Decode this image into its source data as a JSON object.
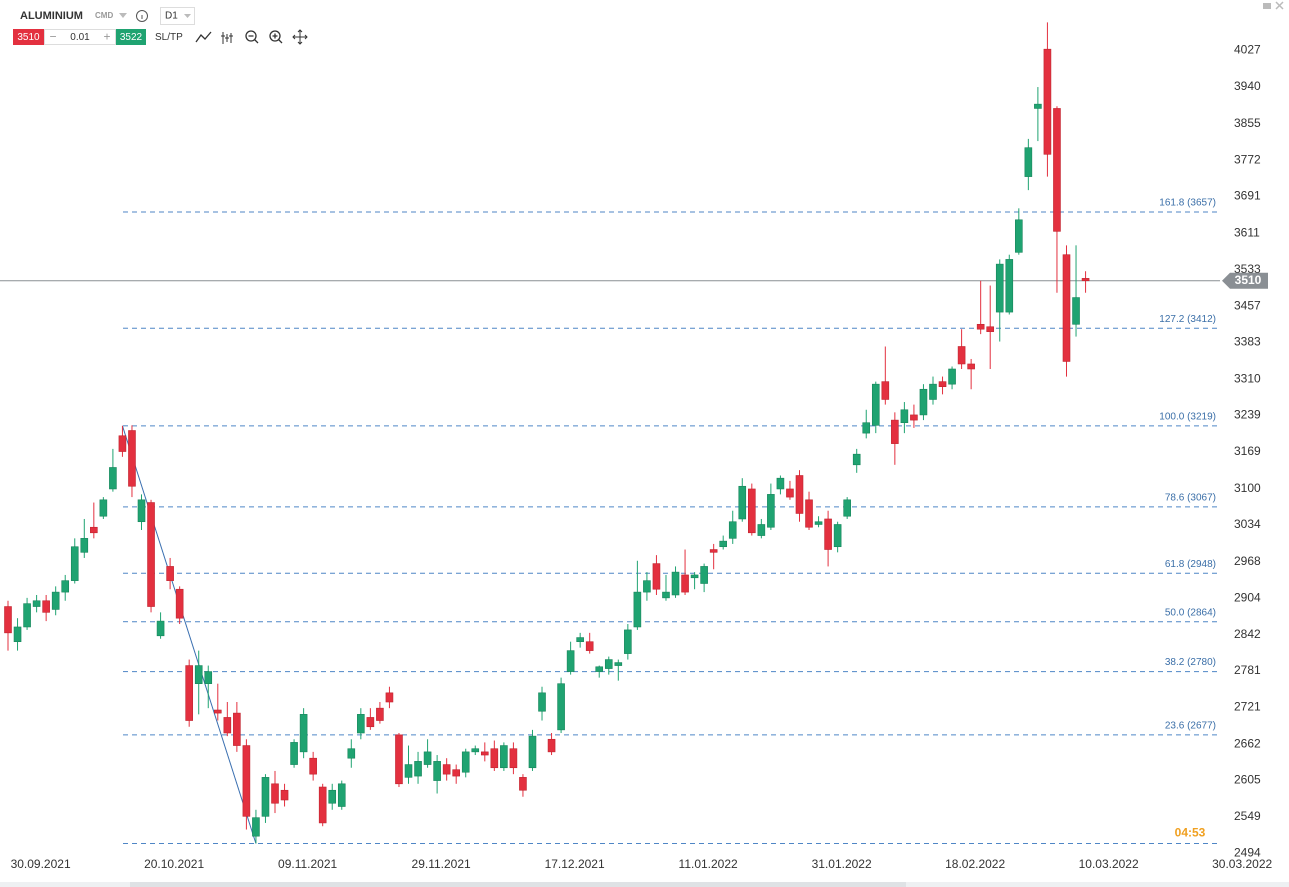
{
  "toolbar": {
    "symbol": "ALUMINIUM",
    "instrument_type": "CMD",
    "timeframe": "D1",
    "sell": 3510,
    "volume": 0.01,
    "buy": 3522,
    "sltp": "SL/TP"
  },
  "chart_data": {
    "type": "candlestick",
    "categories": [
      null,
      null,
      null,
      "30.09.2021",
      null,
      null,
      null,
      null,
      null,
      null,
      null,
      null,
      null,
      null,
      null,
      null,
      null,
      "20.10.2021",
      null,
      null,
      null,
      null,
      null,
      null,
      null,
      null,
      null,
      null,
      null,
      null,
      null,
      "09.11.2021",
      null,
      null,
      null,
      null,
      null,
      null,
      null,
      null,
      null,
      null,
      null,
      null,
      null,
      "29.11.2021",
      null,
      null,
      null,
      null,
      null,
      null,
      null,
      null,
      null,
      null,
      null,
      null,
      null,
      "17.12.2021",
      null,
      null,
      null,
      null,
      null,
      null,
      null,
      null,
      null,
      null,
      null,
      null,
      null,
      "11.01.2022",
      null,
      null,
      null,
      null,
      null,
      null,
      null,
      null,
      null,
      null,
      null,
      null,
      null,
      "31.01.2022",
      null,
      null,
      null,
      null,
      null,
      null,
      null,
      null,
      null,
      null,
      null,
      null,
      null,
      "18.02.2022",
      null,
      null,
      null,
      null,
      null,
      null,
      null,
      null,
      null,
      null,
      null,
      null,
      null,
      "10.03.2022",
      null,
      null,
      null,
      null,
      null,
      null,
      null,
      null,
      null,
      null,
      null,
      null,
      null,
      "30.03.2022"
    ],
    "open": [
      2890,
      2830,
      2855,
      2890,
      2900,
      2885,
      2915,
      2935,
      2985,
      3030,
      3050,
      3100,
      3200,
      3210,
      3040,
      3075,
      2840,
      2960,
      2920,
      2790,
      2760,
      2760,
      2717,
      2705,
      2712,
      2660,
      2520,
      2550,
      2600,
      2590,
      2630,
      2650,
      2640,
      2595,
      2570,
      2565,
      2640,
      2680,
      2705,
      2720,
      2745,
      2677,
      2610,
      2612,
      2630,
      2605,
      2630,
      2622,
      2618,
      2650,
      2650,
      2655,
      2625,
      2655,
      2610,
      2625,
      2715,
      2670,
      2685,
      2780,
      2830,
      2830,
      2780,
      2785,
      2790,
      2810,
      2855,
      2915,
      2965,
      2905,
      2910,
      2945,
      2940,
      2930,
      2990,
      2995,
      3010,
      3045,
      3100,
      3015,
      3030,
      3100,
      3100,
      3125,
      3080,
      3035,
      3045,
      2995,
      3050,
      3145,
      3205,
      3220,
      3305,
      3230,
      3225,
      3240,
      3240,
      3270,
      3305,
      3300,
      3375,
      3340,
      3420,
      3415,
      3445,
      3445,
      3570,
      3735,
      3890,
      4030,
      3890,
      3565,
      3420,
      3515,
      null,
      null,
      null,
      null,
      null,
      null,
      null,
      null,
      null,
      null,
      null,
      null,
      null,
      null,
      null,
      null
    ],
    "high": [
      2900,
      2870,
      2905,
      2910,
      2910,
      2925,
      2945,
      3010,
      3045,
      3075,
      3085,
      3175,
      3219,
      3220,
      3090,
      3080,
      2880,
      2975,
      2925,
      2800,
      2815,
      2790,
      2760,
      2730,
      2730,
      2670,
      2560,
      2615,
      2620,
      2600,
      2670,
      2720,
      2650,
      2600,
      2600,
      2605,
      2670,
      2720,
      2720,
      2730,
      2755,
      2680,
      2660,
      2650,
      2670,
      2645,
      2640,
      2630,
      2655,
      2660,
      2665,
      2668,
      2665,
      2665,
      2615,
      2685,
      2755,
      2680,
      2770,
      2830,
      2845,
      2845,
      2790,
      2805,
      2800,
      2860,
      2970,
      2950,
      2980,
      2945,
      2960,
      2990,
      2950,
      2965,
      3000,
      3015,
      3060,
      3120,
      3110,
      3045,
      3110,
      3125,
      3115,
      3135,
      3095,
      3050,
      3060,
      3040,
      3085,
      3175,
      3250,
      3305,
      3375,
      3245,
      3265,
      3260,
      3300,
      3315,
      3315,
      3335,
      3410,
      3350,
      3510,
      3500,
      3555,
      3565,
      3665,
      3820,
      3940,
      4095,
      3895,
      3585,
      3585,
      3530,
      null,
      null,
      null,
      null,
      null,
      null,
      null,
      null,
      null,
      null,
      null,
      null,
      null,
      null,
      null,
      null
    ],
    "low": [
      2815,
      2815,
      2850,
      2880,
      2865,
      2875,
      2900,
      2930,
      2975,
      3010,
      3045,
      3095,
      3160,
      3085,
      3025,
      2880,
      2835,
      2920,
      2860,
      2690,
      2710,
      2720,
      2700,
      2675,
      2650,
      2530,
      2509,
      2540,
      2555,
      2565,
      2625,
      2640,
      2605,
      2535,
      2560,
      2560,
      2625,
      2670,
      2685,
      2695,
      2720,
      2595,
      2600,
      2600,
      2625,
      2585,
      2605,
      2600,
      2610,
      2645,
      2635,
      2620,
      2620,
      2615,
      2580,
      2620,
      2700,
      2645,
      2680,
      2775,
      2820,
      2810,
      2770,
      2775,
      2765,
      2800,
      2850,
      2900,
      2910,
      2900,
      2905,
      2910,
      2920,
      2915,
      2955,
      2990,
      3000,
      3040,
      3015,
      3010,
      3025,
      3090,
      3080,
      3040,
      3025,
      3030,
      2960,
      2985,
      3045,
      3130,
      3195,
      3205,
      3260,
      3145,
      3205,
      3215,
      3230,
      3260,
      3280,
      3290,
      3330,
      3290,
      3400,
      3330,
      3385,
      3440,
      3565,
      3705,
      3815,
      3735,
      3485,
      3315,
      3395,
      3485,
      null,
      null,
      null,
      null,
      null,
      null,
      null,
      null,
      null,
      null,
      null,
      null,
      null,
      null,
      null,
      null
    ],
    "close": [
      2845,
      2855,
      2895,
      2900,
      2880,
      2915,
      2935,
      2995,
      3010,
      3020,
      3080,
      3140,
      3170,
      3105,
      3080,
      2890,
      2865,
      2935,
      2870,
      2700,
      2790,
      2780,
      2712,
      2680,
      2660,
      2550,
      2548,
      2610,
      2570,
      2575,
      2665,
      2710,
      2615,
      2540,
      2590,
      2600,
      2655,
      2710,
      2690,
      2700,
      2730,
      2600,
      2630,
      2635,
      2650,
      2635,
      2615,
      2612,
      2650,
      2655,
      2645,
      2625,
      2660,
      2625,
      2590,
      2675,
      2745,
      2650,
      2760,
      2815,
      2837,
      2815,
      2788,
      2800,
      2795,
      2850,
      2915,
      2935,
      2920,
      2915,
      2950,
      2915,
      2945,
      2960,
      2985,
      3005,
      3040,
      3105,
      3020,
      3035,
      3090,
      3120,
      3085,
      3055,
      3030,
      3040,
      2990,
      3035,
      3080,
      3165,
      3225,
      3300,
      3270,
      3185,
      3250,
      3230,
      3290,
      3300,
      3295,
      3330,
      3340,
      3330,
      3410,
      3405,
      3545,
      3555,
      3640,
      3800,
      3900,
      3785,
      3615,
      3345,
      3475,
      3510,
      null,
      null,
      null,
      null,
      null,
      null,
      null,
      null,
      null,
      null,
      null,
      null,
      null,
      null,
      null,
      null
    ],
    "up_color": "#1fa371",
    "down_color": "#e3303f",
    "ylim": [
      2480,
      4150
    ],
    "log_scale": true,
    "yticks": [
      4027,
      3940,
      3855,
      3772,
      3691,
      3611,
      3533,
      3457,
      3383,
      3310,
      3239,
      3169,
      3100,
      3034,
      2968,
      2904,
      2842,
      2781,
      2721,
      2662,
      2605,
      2549,
      2494
    ],
    "current_price": 3510,
    "fib_levels": [
      {
        "label": "161.8 (3657)",
        "value": 3657
      },
      {
        "label": "127.2 (3412)",
        "value": 3412
      },
      {
        "label": "100.0 (3219)",
        "value": 3219
      },
      {
        "label": "78.6 (3067)",
        "value": 3067
      },
      {
        "label": "61.8 (2948)",
        "value": 2948
      },
      {
        "label": "50.0 (2864)",
        "value": 2864
      },
      {
        "label": "38.2 (2780)",
        "value": 2780
      },
      {
        "label": "23.6 (2677)",
        "value": 2677
      },
      {
        "value": 2509
      }
    ],
    "countdown": "04:53"
  }
}
